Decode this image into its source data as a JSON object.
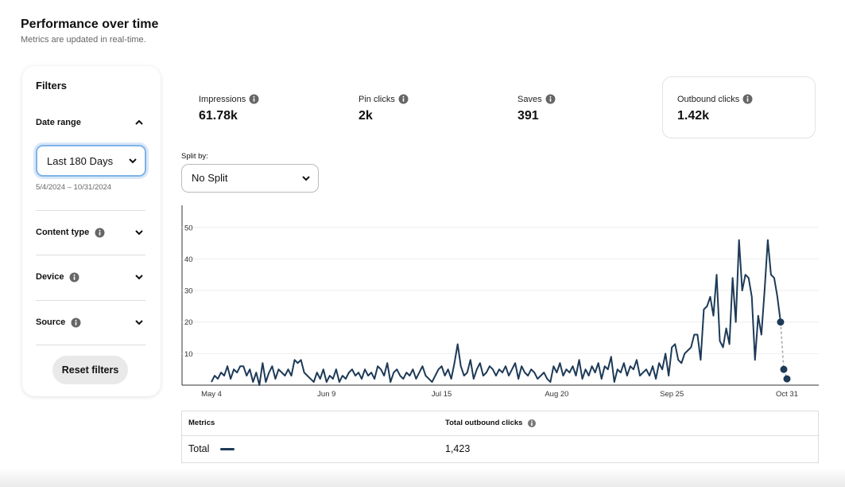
{
  "header": {
    "title": "Performance over time",
    "subtitle": "Metrics are updated in real-time."
  },
  "filters": {
    "title": "Filters",
    "date_range": {
      "label": "Date range",
      "selected": "Last 180 Days",
      "range": "5/4/2024 – 10/31/2024"
    },
    "sections": [
      "Content type",
      "Device",
      "Source"
    ],
    "reset": "Reset filters"
  },
  "metrics": [
    {
      "label": "Impressions",
      "value": "61.78k"
    },
    {
      "label": "Pin clicks",
      "value": "2k"
    },
    {
      "label": "Saves",
      "value": "391"
    },
    {
      "label": "Outbound clicks",
      "value": "1.42k"
    }
  ],
  "split": {
    "label": "Split by:",
    "selected": "No Split"
  },
  "chart_data": {
    "type": "line",
    "categories": [
      "May 4",
      null,
      null,
      null,
      null,
      null,
      null,
      null,
      null,
      null,
      null,
      null,
      null,
      null,
      null,
      null,
      null,
      null,
      null,
      null,
      null,
      null,
      null,
      null,
      null,
      null,
      null,
      null,
      null,
      null,
      null,
      null,
      null,
      null,
      null,
      null,
      "Jun 9",
      null,
      null,
      null,
      null,
      null,
      null,
      null,
      null,
      null,
      null,
      null,
      null,
      null,
      null,
      null,
      null,
      null,
      null,
      null,
      null,
      null,
      null,
      null,
      null,
      null,
      null,
      null,
      null,
      null,
      null,
      null,
      null,
      null,
      null,
      null,
      "Jul 15",
      null,
      null,
      null,
      null,
      null,
      null,
      null,
      null,
      null,
      null,
      null,
      null,
      null,
      null,
      null,
      null,
      null,
      null,
      null,
      null,
      null,
      null,
      null,
      null,
      null,
      null,
      null,
      null,
      null,
      null,
      null,
      null,
      null,
      null,
      null,
      "Aug 20",
      null,
      null,
      null,
      null,
      null,
      null,
      null,
      null,
      null,
      null,
      null,
      null,
      null,
      null,
      null,
      null,
      null,
      null,
      null,
      null,
      null,
      null,
      null,
      null,
      null,
      null,
      null,
      null,
      null,
      null,
      null,
      null,
      null,
      null,
      null,
      "Sep 25",
      null,
      null,
      null,
      null,
      null,
      null,
      null,
      null,
      null,
      null,
      null,
      null,
      null,
      null,
      null,
      null,
      null,
      null,
      null,
      null,
      null,
      null,
      null,
      null,
      null,
      null,
      null,
      null,
      null,
      null,
      null,
      null,
      null,
      null,
      null,
      "Oct 31"
    ],
    "series": [
      {
        "color": "#1d3a57",
        "values": [
          1,
          3,
          2,
          4,
          3,
          6,
          2,
          5,
          4,
          6,
          6,
          3,
          5,
          1,
          4,
          0,
          7,
          1,
          4,
          6,
          2,
          5,
          4,
          3,
          5,
          3,
          8,
          7,
          8,
          4,
          3,
          2,
          1,
          4,
          2,
          5,
          1,
          3,
          2,
          5,
          1,
          3,
          2,
          4,
          5,
          3,
          4,
          2,
          5,
          3,
          4,
          2,
          6,
          5,
          3,
          7,
          1,
          4,
          5,
          3,
          2,
          4,
          3,
          5,
          2,
          4,
          6,
          3,
          2,
          1,
          3,
          5,
          6,
          3,
          5,
          2,
          7,
          13,
          6,
          3,
          4,
          8,
          2,
          5,
          7,
          3,
          4,
          6,
          5,
          3,
          5,
          4,
          6,
          3,
          5,
          7,
          2,
          6,
          4,
          3,
          5,
          4,
          2,
          3,
          4,
          2,
          1,
          6,
          4,
          7,
          3,
          5,
          4,
          6,
          3,
          8,
          2,
          5,
          3,
          6,
          4,
          7,
          2,
          6,
          5,
          9,
          1,
          5,
          4,
          7,
          3,
          6,
          5,
          8,
          3,
          4,
          5,
          3,
          6,
          2,
          7,
          5,
          10,
          3,
          12,
          13,
          8,
          7,
          10,
          11,
          12,
          16,
          16,
          8,
          24,
          25,
          28,
          22,
          35,
          14,
          12,
          18,
          13,
          34,
          20,
          46,
          30,
          35,
          34,
          28,
          8,
          22,
          16,
          30,
          46,
          35,
          34,
          28,
          20,
          null,
          null
        ]
      },
      {
        "color": "#1d3a57",
        "line_color": "#9aa4ad",
        "dashed": true,
        "markers": true,
        "values": [
          null,
          null,
          null,
          null,
          null,
          null,
          null,
          null,
          null,
          null,
          null,
          null,
          null,
          null,
          null,
          null,
          null,
          null,
          null,
          null,
          null,
          null,
          null,
          null,
          null,
          null,
          null,
          null,
          null,
          null,
          null,
          null,
          null,
          null,
          null,
          null,
          null,
          null,
          null,
          null,
          null,
          null,
          null,
          null,
          null,
          null,
          null,
          null,
          null,
          null,
          null,
          null,
          null,
          null,
          null,
          null,
          null,
          null,
          null,
          null,
          null,
          null,
          null,
          null,
          null,
          null,
          null,
          null,
          null,
          null,
          null,
          null,
          null,
          null,
          null,
          null,
          null,
          null,
          null,
          null,
          null,
          null,
          null,
          null,
          null,
          null,
          null,
          null,
          null,
          null,
          null,
          null,
          null,
          null,
          null,
          null,
          null,
          null,
          null,
          null,
          null,
          null,
          null,
          null,
          null,
          null,
          null,
          null,
          null,
          null,
          null,
          null,
          null,
          null,
          null,
          null,
          null,
          null,
          null,
          null,
          null,
          null,
          null,
          null,
          null,
          null,
          null,
          null,
          null,
          null,
          null,
          null,
          null,
          null,
          null,
          null,
          null,
          null,
          null,
          null,
          null,
          null,
          null,
          null,
          null,
          null,
          null,
          null,
          null,
          null,
          null,
          null,
          null,
          null,
          null,
          null,
          null,
          null,
          null,
          null,
          null,
          null,
          null,
          null,
          null,
          null,
          null,
          null,
          null,
          null,
          null,
          null,
          null,
          null,
          null,
          null,
          null,
          null,
          20,
          5,
          2
        ]
      }
    ],
    "ylim": [
      0,
      57
    ],
    "yticks": [
      10,
      20,
      30,
      40,
      50
    ],
    "grid": true
  },
  "table": {
    "headers": [
      "Metrics",
      "Total outbound clicks"
    ],
    "rows": [
      [
        "Total",
        "1,423"
      ]
    ]
  }
}
